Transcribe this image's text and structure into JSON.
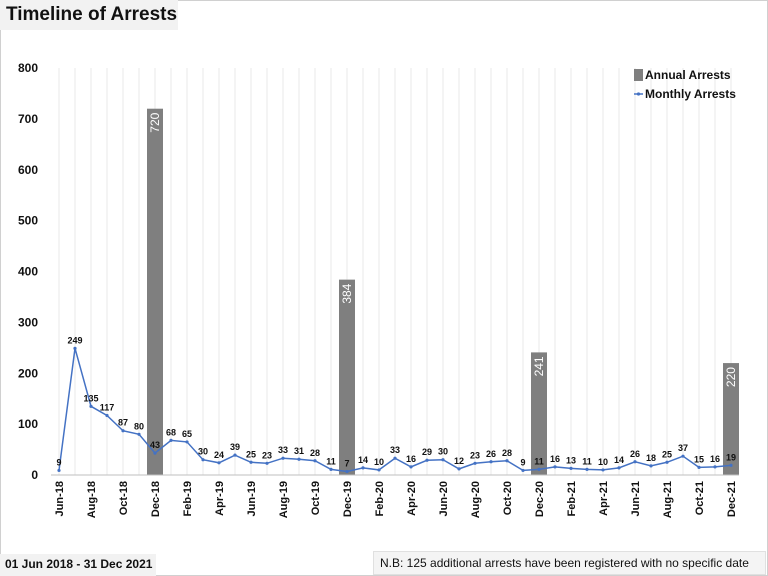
{
  "chart_data": {
    "type": "bar+line",
    "title": "Timeline of Arrests",
    "ylim": [
      0,
      800
    ],
    "yticks": [
      0,
      100,
      200,
      300,
      400,
      500,
      600,
      700,
      800
    ],
    "grid": "vertical",
    "legend_position": "top-right",
    "months": [
      "Jun-18",
      "Jul-18",
      "Aug-18",
      "Sep-18",
      "Oct-18",
      "Nov-18",
      "Dec-18",
      "Jan-19",
      "Feb-19",
      "Mar-19",
      "Apr-19",
      "May-19",
      "Jun-19",
      "Jul-19",
      "Aug-19",
      "Sep-19",
      "Oct-19",
      "Nov-19",
      "Dec-19",
      "Jan-20",
      "Feb-20",
      "Mar-20",
      "Apr-20",
      "May-20",
      "Jun-20",
      "Jul-20",
      "Aug-20",
      "Sep-20",
      "Oct-20",
      "Nov-20",
      "Dec-20",
      "Jan-21",
      "Feb-21",
      "Mar-21",
      "Apr-21",
      "May-21",
      "Jun-21",
      "Jul-21",
      "Aug-21",
      "Sep-21",
      "Oct-21",
      "Nov-21",
      "Dec-21"
    ],
    "xtick_labels": [
      "Jun-18",
      "Aug-18",
      "Oct-18",
      "Dec-18",
      "Feb-19",
      "Apr-19",
      "Jun-19",
      "Aug-19",
      "Oct-19",
      "Dec-19",
      "Feb-20",
      "Apr-20",
      "Jun-20",
      "Aug-20",
      "Oct-20",
      "Dec-20",
      "Feb-21",
      "Apr-21",
      "Jun-21",
      "Aug-21",
      "Oct-21",
      "Dec-21"
    ],
    "series": [
      {
        "name": "Annual Arrests",
        "type": "bar",
        "color": "#7f7f7f",
        "points": [
          {
            "month": "Dec-18",
            "value": 720
          },
          {
            "month": "Dec-19",
            "value": 384
          },
          {
            "month": "Dec-20",
            "value": 241
          },
          {
            "month": "Dec-21",
            "value": 220
          }
        ]
      },
      {
        "name": "Monthly Arrests",
        "type": "line",
        "color": "#4472c4",
        "values": [
          9,
          249,
          135,
          117,
          87,
          80,
          43,
          68,
          65,
          30,
          24,
          39,
          25,
          23,
          33,
          31,
          28,
          11,
          7,
          14,
          10,
          33,
          16,
          29,
          30,
          12,
          23,
          26,
          28,
          9,
          11,
          16,
          13,
          11,
          10,
          14,
          26,
          18,
          25,
          37,
          15,
          16,
          19
        ]
      }
    ]
  },
  "footer": {
    "date_range": "01 Jun 2018 - 31 Dec 2021",
    "note": "N.B: 125 additional arrests have been registered with no specific date"
  }
}
